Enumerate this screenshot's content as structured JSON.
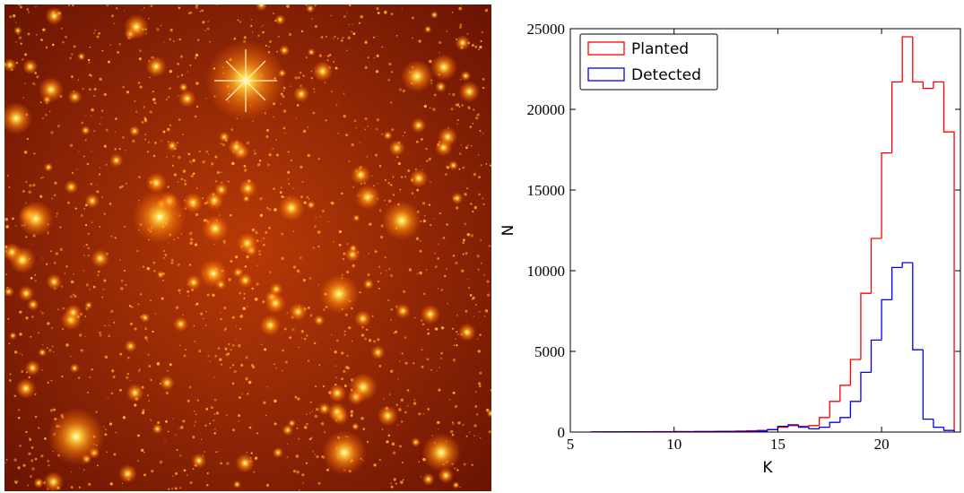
{
  "chart_data": {
    "type": "histogram",
    "xlabel": "K",
    "ylabel": "N",
    "bins": [
      6,
      6.5,
      7,
      7.5,
      8,
      8.5,
      9,
      9.5,
      10,
      10.5,
      11,
      11.5,
      12,
      12.5,
      13,
      13.5,
      14,
      14.5,
      15,
      15.5,
      16,
      16.5,
      17,
      17.5,
      18,
      18.5,
      19,
      19.5,
      20,
      20.5,
      21,
      21.5,
      22,
      22.5,
      23,
      23.5
    ],
    "series": [
      {
        "name": "Planted",
        "color": "#ff0000",
        "values": [
          10,
          10,
          15,
          15,
          20,
          20,
          25,
          25,
          30,
          30,
          40,
          40,
          50,
          50,
          60,
          80,
          100,
          150,
          300,
          400,
          350,
          400,
          900,
          1900,
          2900,
          4500,
          8600,
          12000,
          17300,
          21700,
          24500,
          21700,
          21300,
          21700,
          18600
        ]
      },
      {
        "name": "Detected",
        "color": "#0000ff",
        "values": [
          5,
          5,
          5,
          10,
          10,
          10,
          10,
          15,
          15,
          15,
          20,
          20,
          25,
          25,
          30,
          40,
          60,
          150,
          350,
          450,
          300,
          200,
          300,
          600,
          900,
          1900,
          3700,
          5700,
          8200,
          10200,
          10500,
          5100,
          800,
          300,
          100
        ]
      }
    ],
    "xlim": [
      5,
      23.8
    ],
    "xticks": [
      5,
      10,
      15,
      20
    ],
    "ylim": [
      0,
      25000
    ],
    "yticks": [
      0,
      5000,
      10000,
      15000,
      20000,
      25000
    ],
    "legend": "upper-left"
  }
}
